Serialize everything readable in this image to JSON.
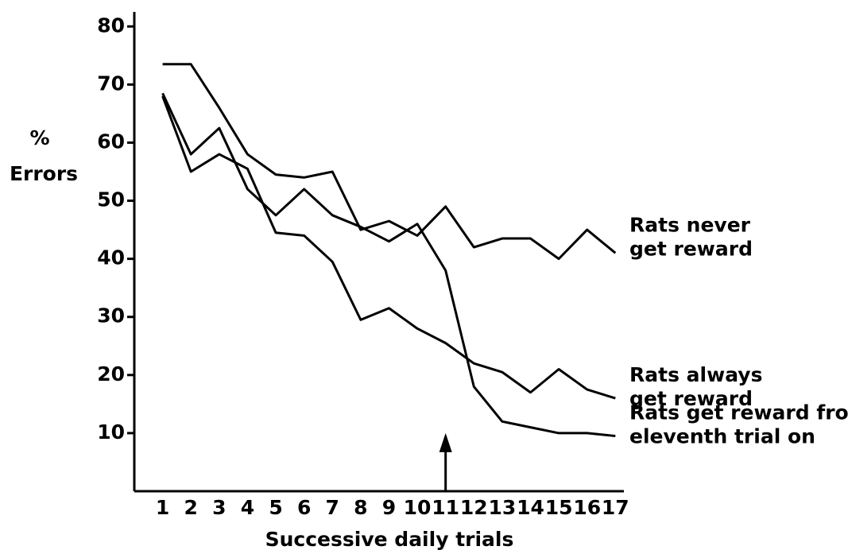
{
  "chart_data": {
    "type": "line",
    "ylabel": [
      "%",
      "Errors"
    ],
    "xlabel": "Successive daily trials",
    "x": [
      1,
      2,
      3,
      4,
      5,
      6,
      7,
      8,
      9,
      10,
      11,
      12,
      13,
      14,
      15,
      16,
      17
    ],
    "xlim": [
      0,
      17.3
    ],
    "xticks": [
      1,
      2,
      3,
      4,
      5,
      6,
      7,
      8,
      9,
      10,
      11,
      12,
      13,
      14,
      15,
      16,
      17
    ],
    "ylim": [
      0,
      82.5
    ],
    "yticks": [
      10,
      20,
      30,
      40,
      50,
      60,
      70,
      80
    ],
    "grid": false,
    "arrow_at": 11,
    "series": [
      {
        "name": [
          "Rats never",
          "get reward"
        ],
        "color": "#000000",
        "values": [
          73.5,
          73.5,
          66,
          58,
          54.5,
          54,
          55,
          45,
          46.5,
          44,
          49,
          42,
          43.5,
          43.5,
          40,
          45,
          41
        ]
      },
      {
        "name": [
          "Rats always",
          "get reward"
        ],
        "color": "#000000",
        "values": [
          68,
          55,
          58,
          55.5,
          44.5,
          44,
          39.5,
          29.5,
          31.5,
          28,
          25.5,
          22,
          20.5,
          17,
          21,
          17.5,
          16
        ]
      },
      {
        "name": [
          "Rats get reward from",
          "eleventh trial on"
        ],
        "color": "#000000",
        "values": [
          68.5,
          58,
          62.5,
          52,
          47.5,
          52,
          47.5,
          45.5,
          43,
          46,
          38,
          18,
          12,
          11,
          10,
          10,
          9.5
        ]
      }
    ]
  }
}
